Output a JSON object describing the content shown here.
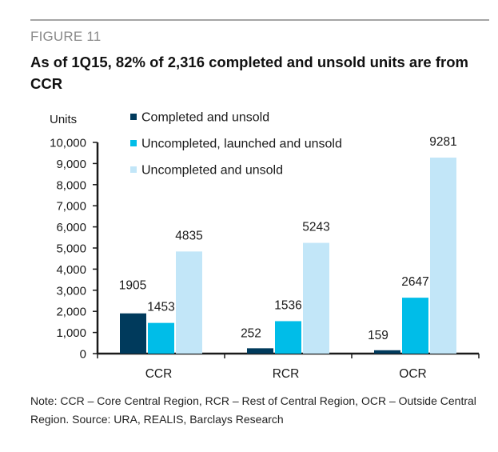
{
  "figure": {
    "label": "FIGURE 11",
    "title": "As of 1Q15, 82% of 2,316 completed and unsold units are from CCR",
    "note": "Note: CCR – Core Central Region, RCR – Rest of Central Region, OCR – Outside Central Region. Source: URA, REALIS, Barclays Research"
  },
  "chart_data": {
    "type": "bar",
    "title": "As of 1Q15, 82% of 2,316 completed and unsold units are from CCR",
    "xlabel": "",
    "ylabel": "Units",
    "categories": [
      "CCR",
      "RCR",
      "OCR"
    ],
    "series": [
      {
        "name": "Completed and unsold",
        "color": "#003a5c",
        "values": [
          1905,
          252,
          159
        ]
      },
      {
        "name": "Uncompleted, launched and unsold",
        "color": "#00bde8",
        "values": [
          1453,
          1536,
          2647
        ]
      },
      {
        "name": "Uncompleted and unsold",
        "color": "#c2e6f8",
        "values": [
          4835,
          5243,
          9281
        ]
      }
    ],
    "ylim": [
      0,
      10000
    ],
    "yticks": [
      0,
      1000,
      2000,
      3000,
      4000,
      5000,
      6000,
      7000,
      8000,
      9000,
      10000
    ],
    "ytick_labels": [
      "0",
      "1,000",
      "2,000",
      "3,000",
      "4,000",
      "5,000",
      "6,000",
      "7,000",
      "8,000",
      "9,000",
      "10,000"
    ],
    "grid": false,
    "legend_position": "top-left",
    "data_labels": true
  }
}
